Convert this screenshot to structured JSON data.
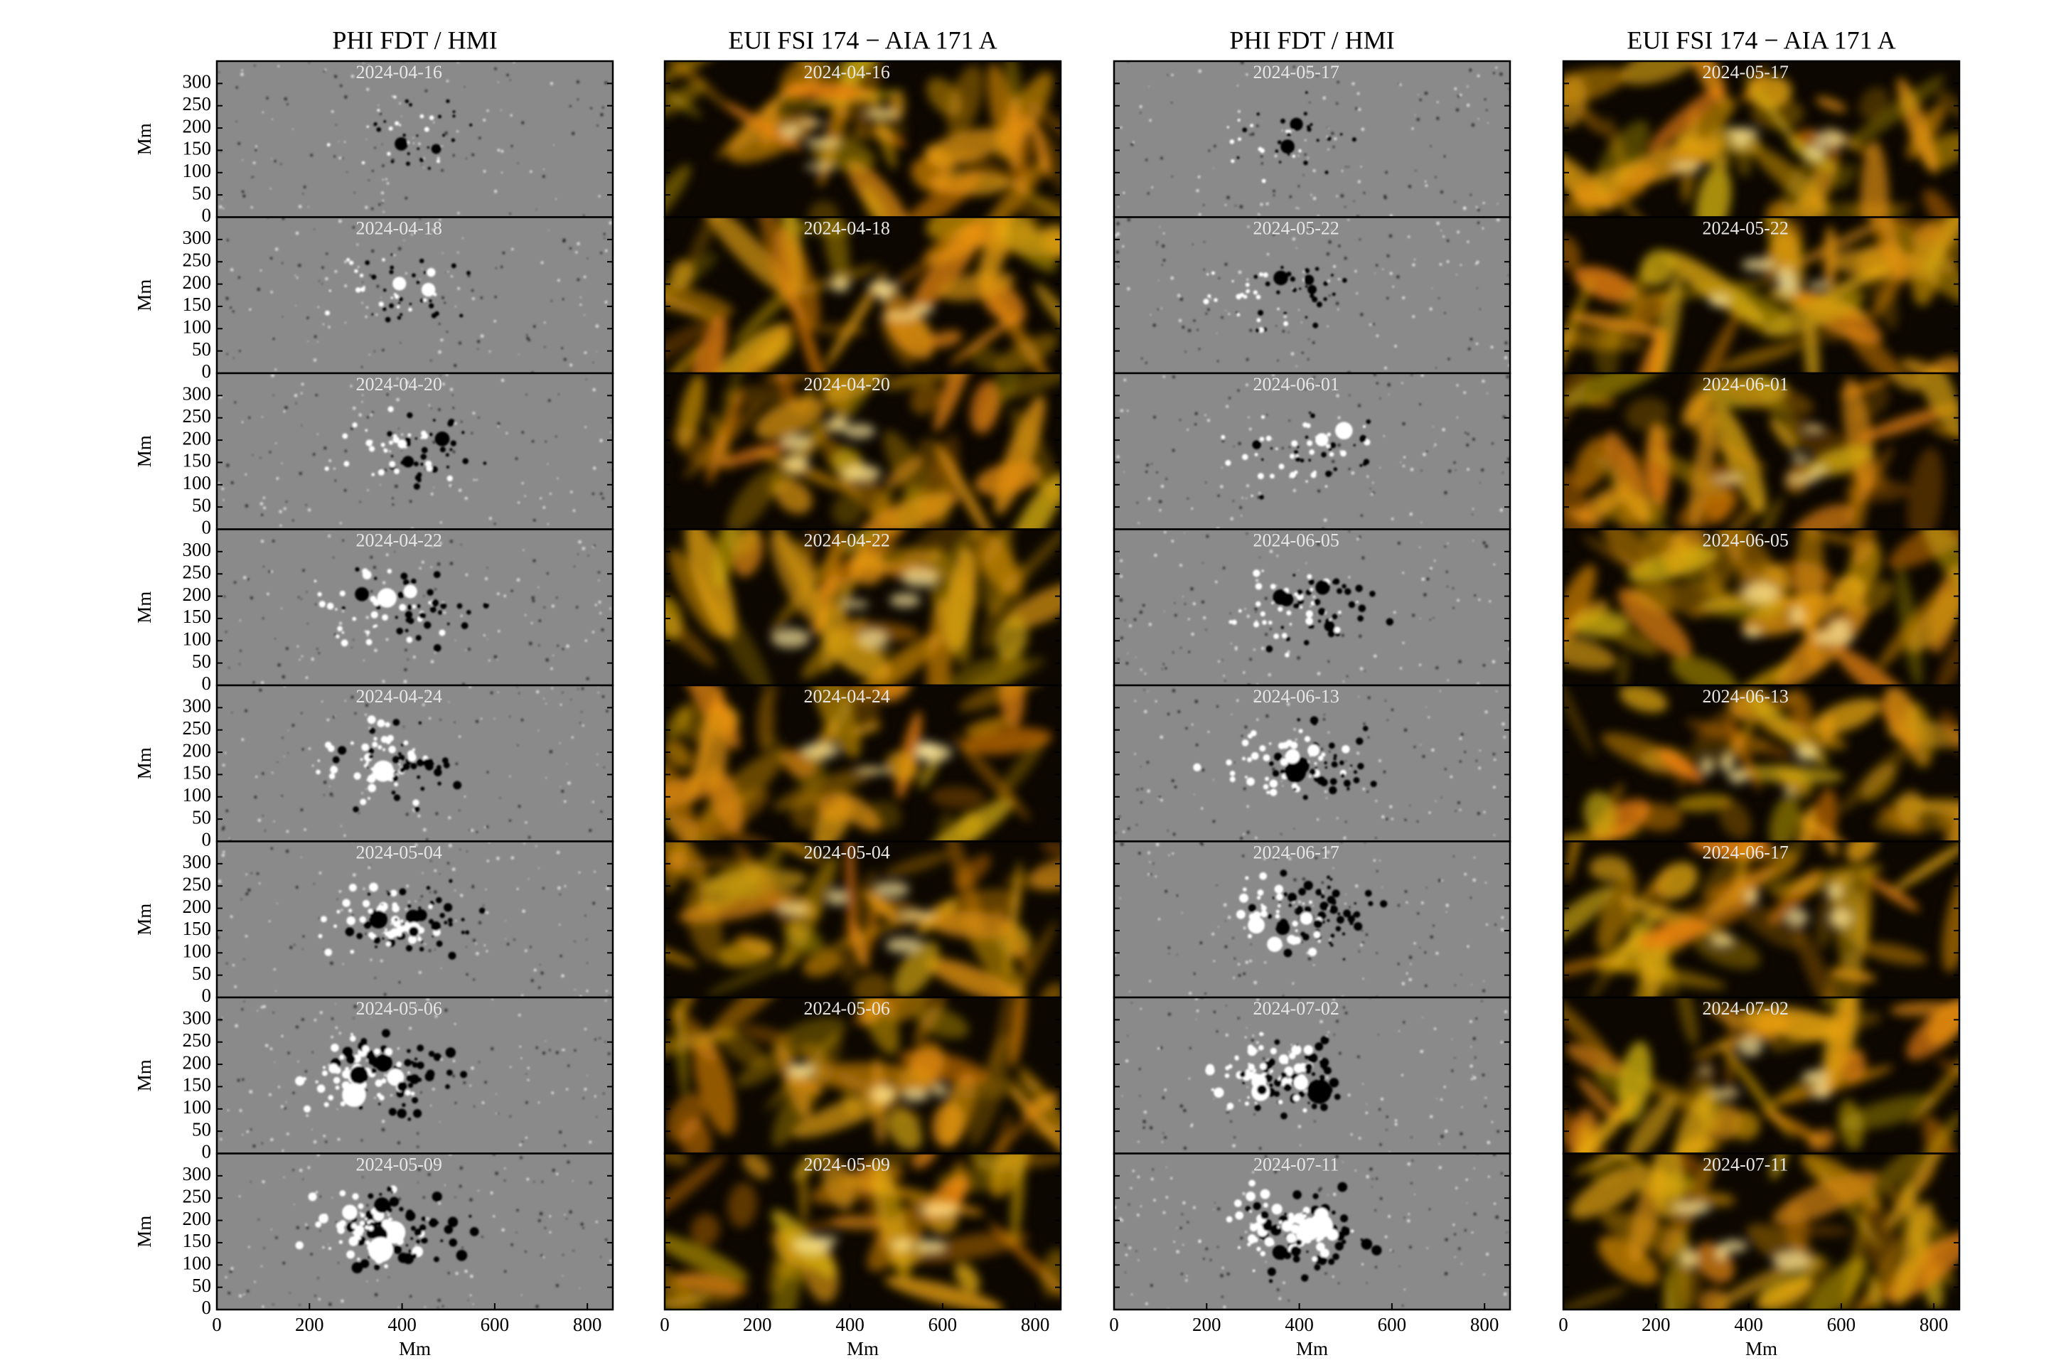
{
  "columns": [
    {
      "title": "PHI FDT / HMI",
      "dates": [
        "2024-04-16",
        "2024-04-18",
        "2024-04-20",
        "2024-04-22",
        "2024-04-24",
        "2024-05-04",
        "2024-05-06",
        "2024-05-09"
      ]
    },
    {
      "title": "EUI FSI 174 − AIA 171 A",
      "dates": [
        "2024-04-16",
        "2024-04-18",
        "2024-04-20",
        "2024-04-22",
        "2024-04-24",
        "2024-05-04",
        "2024-05-06",
        "2024-05-09"
      ]
    },
    {
      "title": "PHI FDT / HMI",
      "dates": [
        "2024-05-17",
        "2024-05-22",
        "2024-06-01",
        "2024-06-05",
        "2024-06-13",
        "2024-06-17",
        "2024-07-02",
        "2024-07-11"
      ]
    },
    {
      "title": "EUI FSI 174 − AIA 171 A",
      "dates": [
        "2024-05-17",
        "2024-05-22",
        "2024-06-01",
        "2024-06-05",
        "2024-06-13",
        "2024-06-17",
        "2024-07-02",
        "2024-07-11"
      ]
    }
  ],
  "axes": {
    "xlabel": "Mm",
    "ylabel": "Mm",
    "xlim": [
      0,
      855
    ],
    "ylim": [
      0,
      350
    ],
    "xticks": [
      0,
      200,
      400,
      600,
      800
    ],
    "yticks": [
      0,
      50,
      100,
      150,
      200,
      250,
      300
    ]
  }
}
